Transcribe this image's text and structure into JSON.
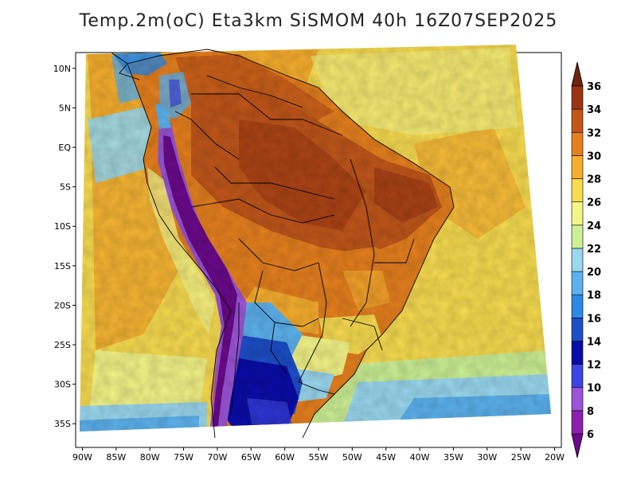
{
  "title": "Temp.2m(oC) Eta3km SiSMOM 40h 16Z07SEP2025",
  "map": {
    "lon_range": [
      -91,
      -19
    ],
    "lat_range": [
      -38,
      12
    ],
    "lat_ticks": [
      {
        "value": 10,
        "label": "10N"
      },
      {
        "value": 5,
        "label": "5N"
      },
      {
        "value": 0,
        "label": "EQ"
      },
      {
        "value": -5,
        "label": "5S"
      },
      {
        "value": -10,
        "label": "10S"
      },
      {
        "value": -15,
        "label": "15S"
      },
      {
        "value": -20,
        "label": "20S"
      },
      {
        "value": -25,
        "label": "25S"
      },
      {
        "value": -30,
        "label": "30S"
      },
      {
        "value": -35,
        "label": "35S"
      }
    ],
    "lon_ticks": [
      {
        "value": -90,
        "label": "90W"
      },
      {
        "value": -85,
        "label": "85W"
      },
      {
        "value": -80,
        "label": "80W"
      },
      {
        "value": -75,
        "label": "75W"
      },
      {
        "value": -70,
        "label": "70W"
      },
      {
        "value": -65,
        "label": "65W"
      },
      {
        "value": -60,
        "label": "60W"
      },
      {
        "value": -55,
        "label": "55W"
      },
      {
        "value": -50,
        "label": "50W"
      },
      {
        "value": -45,
        "label": "45W"
      },
      {
        "value": -40,
        "label": "40W"
      },
      {
        "value": -35,
        "label": "35W"
      },
      {
        "value": -30,
        "label": "30W"
      },
      {
        "value": -25,
        "label": "25W"
      },
      {
        "value": -20,
        "label": "20W"
      }
    ]
  },
  "colorbar": {
    "levels": [
      {
        "label": "6",
        "color": "#6a0a8a"
      },
      {
        "label": "8",
        "color": "#8e1fae"
      },
      {
        "label": "10",
        "color": "#9a55d8"
      },
      {
        "label": "12",
        "color": "#3c46e6"
      },
      {
        "label": "14",
        "color": "#0a0ca8"
      },
      {
        "label": "16",
        "color": "#1c4ec8"
      },
      {
        "label": "18",
        "color": "#2c8ae6"
      },
      {
        "label": "20",
        "color": "#5cb2ee"
      },
      {
        "label": "22",
        "color": "#9ad8f0"
      },
      {
        "label": "24",
        "color": "#cdf096"
      },
      {
        "label": "26",
        "color": "#f4f488"
      },
      {
        "label": "28",
        "color": "#f8dc50"
      },
      {
        "label": "30",
        "color": "#f6ae2e"
      },
      {
        "label": "32",
        "color": "#e6801e"
      },
      {
        "label": "34",
        "color": "#c0561a"
      },
      {
        "label": "36",
        "color": "#9a3412"
      }
    ],
    "top_color": "#6e2410",
    "bottom_color": "#6a0a8a"
  }
}
